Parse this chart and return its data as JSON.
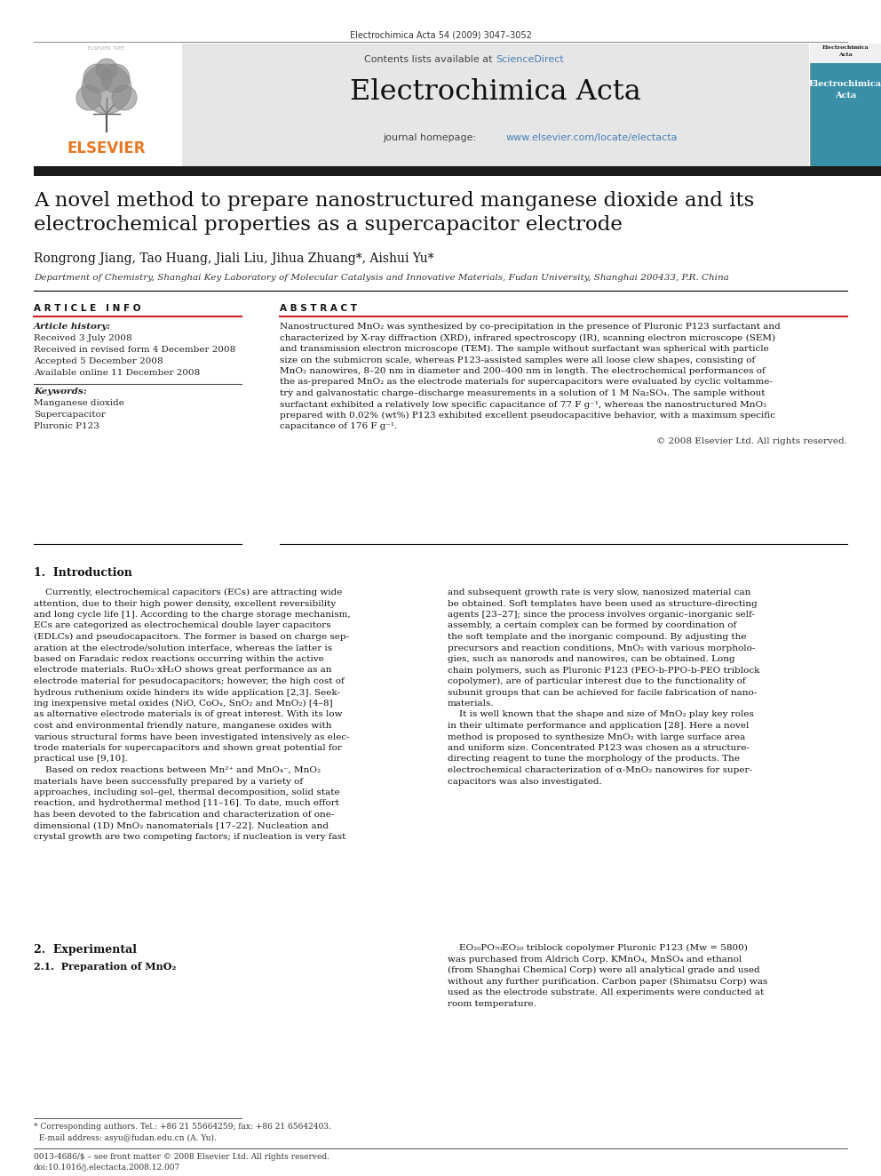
{
  "page_bg": "#ffffff",
  "journal_ref": "Electrochimica Acta 54 (2009) 3047–3052",
  "journal_name": "Electrochimica Acta",
  "contents_text_before": "Contents lists available at ",
  "contents_text_link": "ScienceDirect",
  "sciencedirect_color": "#4a7fb5",
  "journal_url_before": "journal homepage: ",
  "journal_url_link": "www.elsevier.com/locate/electacta",
  "url_color": "#4a7fb5",
  "header_bg": "#e8e8e8",
  "article_title_line1": "A novel method to prepare nanostructured manganese dioxide and its",
  "article_title_line2": "electrochemical properties as a supercapacitor electrode",
  "authors": "Rongrong Jiang, Tao Huang, Jiali Liu, Jihua Zhuang*, Aishui Yu*",
  "affiliation": "Department of Chemistry, Shanghai Key Laboratory of Molecular Catalysis and Innovative Materials, Fudan University, Shanghai 200433, P.R. China",
  "article_info_title": "A R T I C L E   I N F O",
  "article_history_label": "Article history:",
  "history_lines": [
    "Received 3 July 2008",
    "Received in revised form 4 December 2008",
    "Accepted 5 December 2008",
    "Available online 11 December 2008"
  ],
  "keywords_label": "Keywords:",
  "keywords": [
    "Manganese dioxide",
    "Supercapacitor",
    "Pluronic P123"
  ],
  "abstract_title": "A B S T R A C T",
  "abstract_lines": [
    "Nanostructured MnO₂ was synthesized by co-precipitation in the presence of Pluronic P123 surfactant and",
    "characterized by X-ray diffraction (XRD), infrared spectroscopy (IR), scanning electron microscope (SEM)",
    "and transmission electron microscope (TEM). The sample without surfactant was spherical with particle",
    "size on the submicron scale, whereas P123-assisted samples were all loose clew shapes, consisting of",
    "MnO₂ nanowires, 8–20 nm in diameter and 200–400 nm in length. The electrochemical performances of",
    "the as-prepared MnO₂ as the electrode materials for supercapacitors were evaluated by cyclic voltamme-",
    "try and galvanostatic charge–discharge measurements in a solution of 1 M Na₂SO₄. The sample without",
    "surfactant exhibited a relatively low specific capacitance of 77 F g⁻¹, whereas the nanostructured MnO₂",
    "prepared with 0.02% (wt%) P123 exhibited excellent pseudocapacitive behavior, with a maximum specific",
    "capacitance of 176 F g⁻¹."
  ],
  "copyright": "© 2008 Elsevier Ltd. All rights reserved.",
  "section1_title": "1.  Introduction",
  "intro_p1_col1": [
    "    Currently, electrochemical capacitors (ECs) are attracting wide",
    "attention, due to their high power density, excellent reversibility",
    "and long cycle life [1]. According to the charge storage mechanism,",
    "ECs are categorized as electrochemical double layer capacitors",
    "(EDLCs) and pseudocapacitors. The former is based on charge sep-",
    "aration at the electrode/solution interface, whereas the latter is",
    "based on Faradaic redox reactions occurring within the active",
    "electrode materials. RuO₂·xH₂O shows great performance as an",
    "electrode material for pesudocapacitors; however, the high cost of",
    "hydrous ruthenium oxide hinders its wide application [2,3]. Seek-",
    "ing inexpensive metal oxides (NiO, CoOₓ, SnO₂ and MnO₂) [4–8]",
    "as alternative electrode materials is of great interest. With its low",
    "cost and environmental friendly nature, manganese oxides with",
    "various structural forms have been investigated intensively as elec-",
    "trode materials for supercapacitors and shown great potential for",
    "practical use [9,10].",
    "    Based on redox reactions between Mn²⁺ and MnO₄⁻, MnO₂",
    "materials have been successfully prepared by a variety of",
    "approaches, including sol–gel, thermal decomposition, solid state",
    "reaction, and hydrothermal method [11–16]. To date, much effort",
    "has been devoted to the fabrication and characterization of one-",
    "dimensional (1D) MnO₂ nanomaterials [17–22]. Nucleation and",
    "crystal growth are two competing factors; if nucleation is very fast"
  ],
  "intro_p1_col2": [
    "and subsequent growth rate is very slow, nanosized material can",
    "be obtained. Soft templates have been used as structure-directing",
    "agents [23–27]; since the process involves organic–inorganic self-",
    "assembly, a certain complex can be formed by coordination of",
    "the soft template and the inorganic compound. By adjusting the",
    "precursors and reaction conditions, MnO₂ with various morpholo-",
    "gies, such as nanorods and nanowires, can be obtained. Long",
    "chain polymers, such as Pluronic P123 (PEO-b-PPO-b-PEO triblock",
    "copolymer), are of particular interest due to the functionality of",
    "subunit groups that can be achieved for facile fabrication of nano-",
    "materials.",
    "    It is well known that the shape and size of MnO₂ play key roles",
    "in their ultimate performance and application [28]. Here a novel",
    "method is proposed to synthesize MnO₂ with large surface area",
    "and uniform size. Concentrated P123 was chosen as a structure-",
    "directing reagent to tune the morphology of the products. The",
    "electrochemical characterization of α-MnO₂ nanowires for super-",
    "capacitors was also investigated."
  ],
  "section2_title": "2.  Experimental",
  "section21_title": "2.1.  Preparation of MnO₂",
  "section21_col2_lines": [
    "    EO₂₀PO₇₀EO₂₀ triblock copolymer Pluronic P123 (Mw = 5800)",
    "was purchased from Aldrich Corp. KMnO₄, MnSO₄ and ethanol",
    "(from Shanghai Chemical Corp) were all analytical grade and used",
    "without any further purification. Carbon paper (Shimatsu Corp) was",
    "used as the electrode substrate. All experiments were conducted at",
    "room temperature."
  ],
  "footnote_star": "* Corresponding authors. Tel.: +86 21 55664259; fax: +86 21 65642403.",
  "footnote_email": "  E-mail address: asyu@fudan.edu.cn (A. Yu).",
  "footnote_bar1": "0013-4686/$ – see front matter © 2008 Elsevier Ltd. All rights reserved.",
  "footnote_bar2": "doi:10.1016/j.electacta.2008.12.007",
  "elsevier_color": "#e87722",
  "thick_bar_color": "#1a1a1a",
  "red_line_color": "#cc2222",
  "cover_bg": "#3a8fa8",
  "cover_text1": "Electrochimica",
  "cover_text2": "Acta"
}
